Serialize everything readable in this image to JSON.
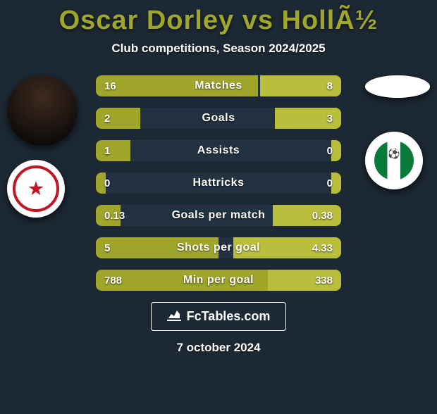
{
  "background_color": "#1c2833",
  "title": "Oscar Dorley vs HollÃ½",
  "title_color": "#a0a62a",
  "subtitle": "Club competitions, Season 2024/2025",
  "left_color": "#a0a62a",
  "right_color": "#b9bf3c",
  "track_color": "#233240",
  "text_color": "#ffffff",
  "rows": [
    {
      "label": "Matches",
      "left": "16",
      "right": "8",
      "left_pct": 66,
      "right_pct": 33
    },
    {
      "label": "Goals",
      "left": "2",
      "right": "3",
      "left_pct": 18,
      "right_pct": 27
    },
    {
      "label": "Assists",
      "left": "1",
      "right": "0",
      "left_pct": 14,
      "right_pct": 4
    },
    {
      "label": "Hattricks",
      "left": "0",
      "right": "0",
      "left_pct": 4,
      "right_pct": 4
    },
    {
      "label": "Goals per match",
      "left": "0.13",
      "right": "0.38",
      "left_pct": 10,
      "right_pct": 28
    },
    {
      "label": "Shots per goal",
      "left": "5",
      "right": "4.33",
      "left_pct": 50,
      "right_pct": 44
    },
    {
      "label": "Min per goal",
      "left": "788",
      "right": "338",
      "left_pct": 70,
      "right_pct": 30
    }
  ],
  "brand": "FcTables.com",
  "date": "7 october 2024",
  "font": {
    "title_size": 38,
    "subtitle_size": 17,
    "label_size": 16,
    "value_size": 15
  }
}
